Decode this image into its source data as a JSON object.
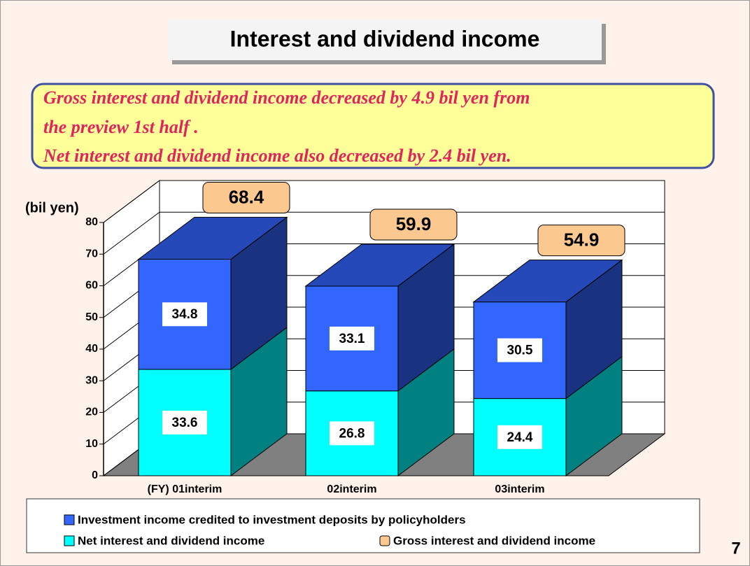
{
  "chart_data": {
    "type": "bar3d-stacked",
    "title": "Interest and dividend income",
    "annotations": [
      "Gross interest and dividend income decreased by 4.9 bil yen from",
      "the preview 1st half .",
      "Net interest and dividend income also decreased by 2.4 bil yen."
    ],
    "y_label": "(bil yen)",
    "categories": [
      "(FY) 01interim",
      "02interim",
      "03interim"
    ],
    "series": [
      {
        "name": "Net interest and dividend income",
        "color": "#00ffff",
        "values": [
          33.6,
          26.8,
          24.4
        ]
      },
      {
        "name": "Investment income credited to investment deposits by policyholders",
        "color": "#3366ff",
        "values": [
          34.8,
          33.1,
          30.5
        ]
      },
      {
        "name": "Gross interest and dividend income",
        "color": "#fbc990",
        "values": [
          68.4,
          59.9,
          54.9
        ]
      }
    ],
    "ylim": [
      0,
      80
    ],
    "yticks": [
      0,
      10,
      20,
      30,
      40,
      50,
      60,
      70,
      80
    ],
    "grid": true,
    "page_number": "7"
  }
}
